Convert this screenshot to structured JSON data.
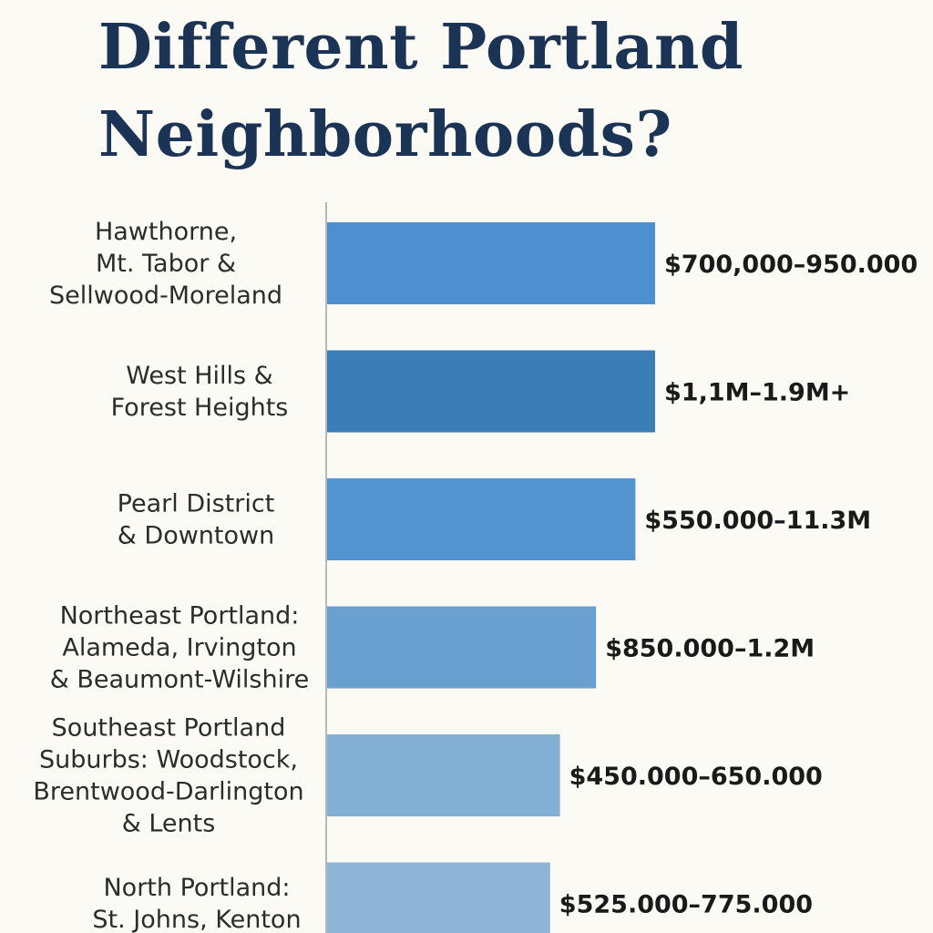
{
  "title_lines": [
    "Different Portland",
    "Neighborhoods?"
  ],
  "chart_data": {
    "type": "bar",
    "orientation": "horizontal",
    "title": "Different Portland Neighborhoods?",
    "xlabel": "",
    "ylabel": "",
    "grid": false,
    "categories": [
      [
        "Hawthorne,",
        "Mt. Tabor &",
        "Sellwood-Moreland"
      ],
      [
        "West Hills &",
        "Forest Heights"
      ],
      [
        "Pearl District",
        "& Downtown"
      ],
      [
        "Northeast Portland:",
        "Alameda, Irvington",
        "& Beaumont-Wilshire"
      ],
      [
        "Southeast Portland",
        "Suburbs: Woodstock,",
        "Brentwood-Darlington",
        "& Lents"
      ],
      [
        "North Portland:",
        "St. Johns, Kenton"
      ]
    ],
    "value_labels": [
      "$700,000–950.000",
      "$1,1M–1.9M+",
      "$550.000–11.3M",
      "$850.000–1.2M",
      "$450.000–650.000",
      "$525.000–775.000"
    ],
    "relative_values": [
      1.0,
      1.0,
      0.94,
      0.82,
      0.71,
      0.68
    ],
    "colors": [
      "#4d8fcf",
      "#3b7db6",
      "#5294cf",
      "#6aa0cf",
      "#82afd3",
      "#8fb5d6"
    ]
  }
}
